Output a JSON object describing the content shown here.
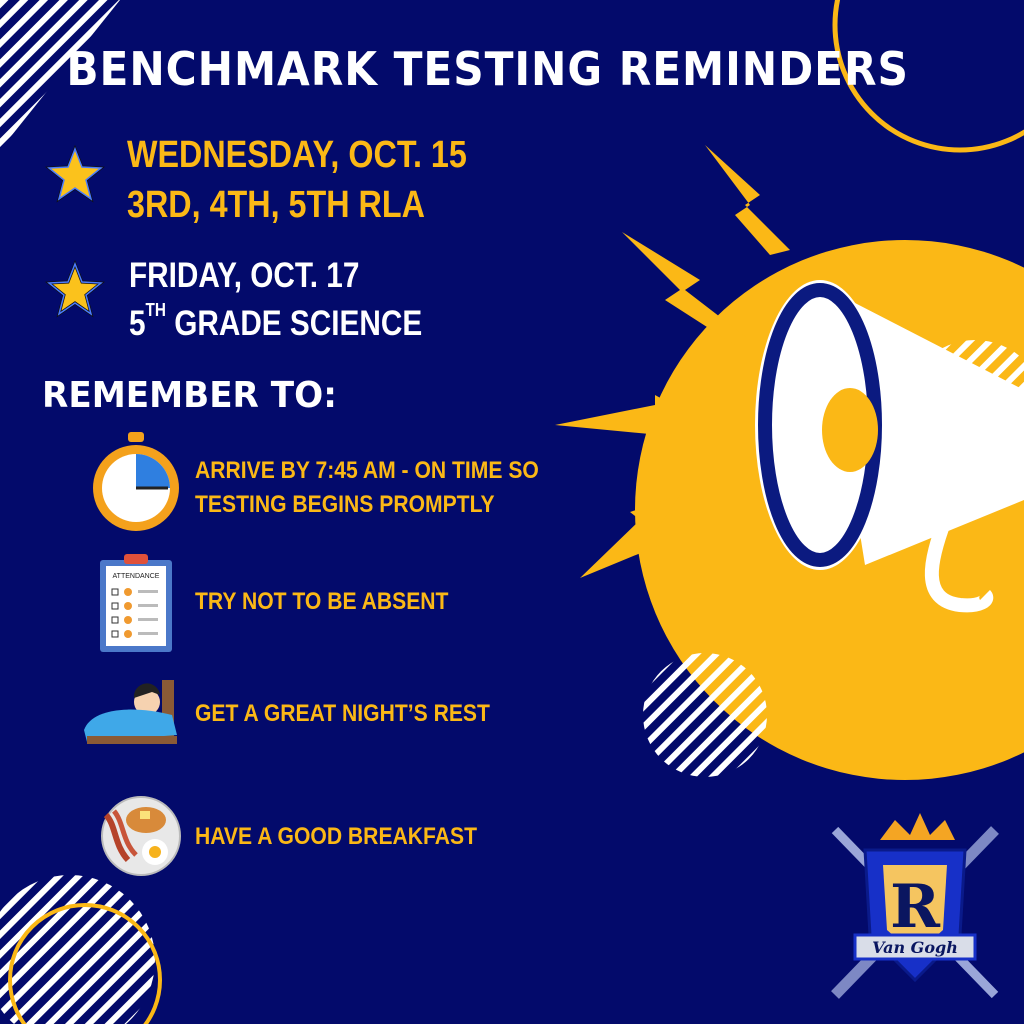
{
  "title": "BENCHMARK TESTING REMINDERS",
  "dates": [
    {
      "line1": "WEDNESDAY, OCT. 15",
      "line2": "3RD, 4TH, 5TH RLA",
      "icon": "star-icon"
    },
    {
      "line1": "FRIDAY, OCT.  17",
      "line2_num": "5",
      "line2_sup": "TH",
      "line2_rest": " GRADE SCIENCE",
      "icon": "star-icon"
    }
  ],
  "remember_heading": "REMEMBER TO:",
  "reminders": [
    {
      "line1": "ARRIVE BY 7:45 AM - ON TIME SO",
      "line2": "TESTING BEGINS PROMPTLY",
      "icon": "stopwatch-icon"
    },
    {
      "text": "TRY NOT TO BE ABSENT",
      "icon": "attendance-clipboard-icon",
      "icon_label": "ATTENDANCE"
    },
    {
      "text": "GET A GREAT NIGHT’S REST",
      "icon": "sleeping-in-bed-icon"
    },
    {
      "text": "HAVE A GOOD BREAKFAST",
      "icon": "breakfast-plate-icon"
    }
  ],
  "logo": {
    "letter": "R",
    "banner": "Van Gogh"
  },
  "colors": {
    "background": "#030a6b",
    "accent": "#fbb816",
    "text": "#ffffff"
  }
}
